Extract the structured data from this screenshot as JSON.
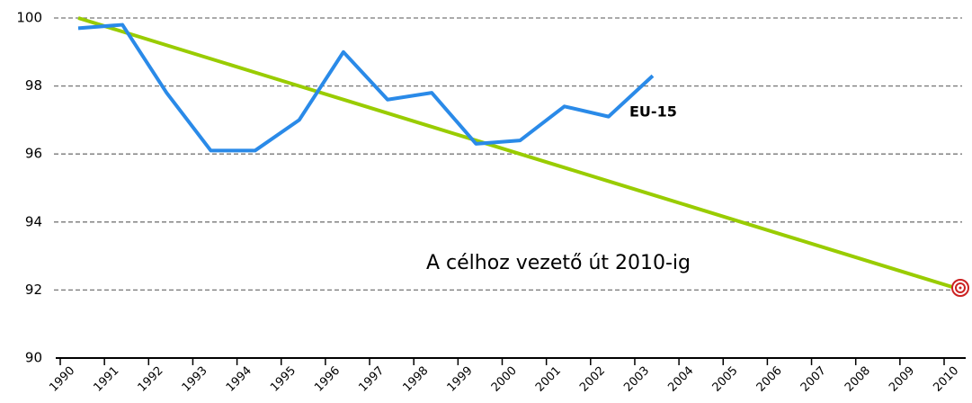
{
  "chart_data": {
    "type": "line",
    "categories": [
      "1990",
      "1991",
      "1992",
      "1993",
      "1994",
      "1995",
      "1996",
      "1997",
      "1998",
      "1999",
      "2000",
      "2001",
      "2002",
      "2003",
      "2004",
      "2005",
      "2006",
      "2007",
      "2008",
      "2009",
      "2010"
    ],
    "series": [
      {
        "name": "EU-15",
        "color": "#2a8ae8",
        "values": [
          99.7,
          99.8,
          97.8,
          96.1,
          96.1,
          97.0,
          99.0,
          97.6,
          97.8,
          96.3,
          96.4,
          97.4,
          97.1,
          98.3,
          null,
          null,
          null,
          null,
          null,
          null,
          null
        ]
      },
      {
        "name": "A célhoz vezető út 2010-ig",
        "color": "#99cc00",
        "values": [
          100,
          99.6,
          99.2,
          98.8,
          98.4,
          98.0,
          97.6,
          97.2,
          96.8,
          96.4,
          96.0,
          95.6,
          95.2,
          94.8,
          94.4,
          94.0,
          93.6,
          93.2,
          92.8,
          92.4,
          92.0
        ]
      }
    ],
    "ylim": [
      90,
      100
    ],
    "yticks": [
      90,
      92,
      94,
      96,
      98,
      100
    ],
    "grid": true
  }
}
